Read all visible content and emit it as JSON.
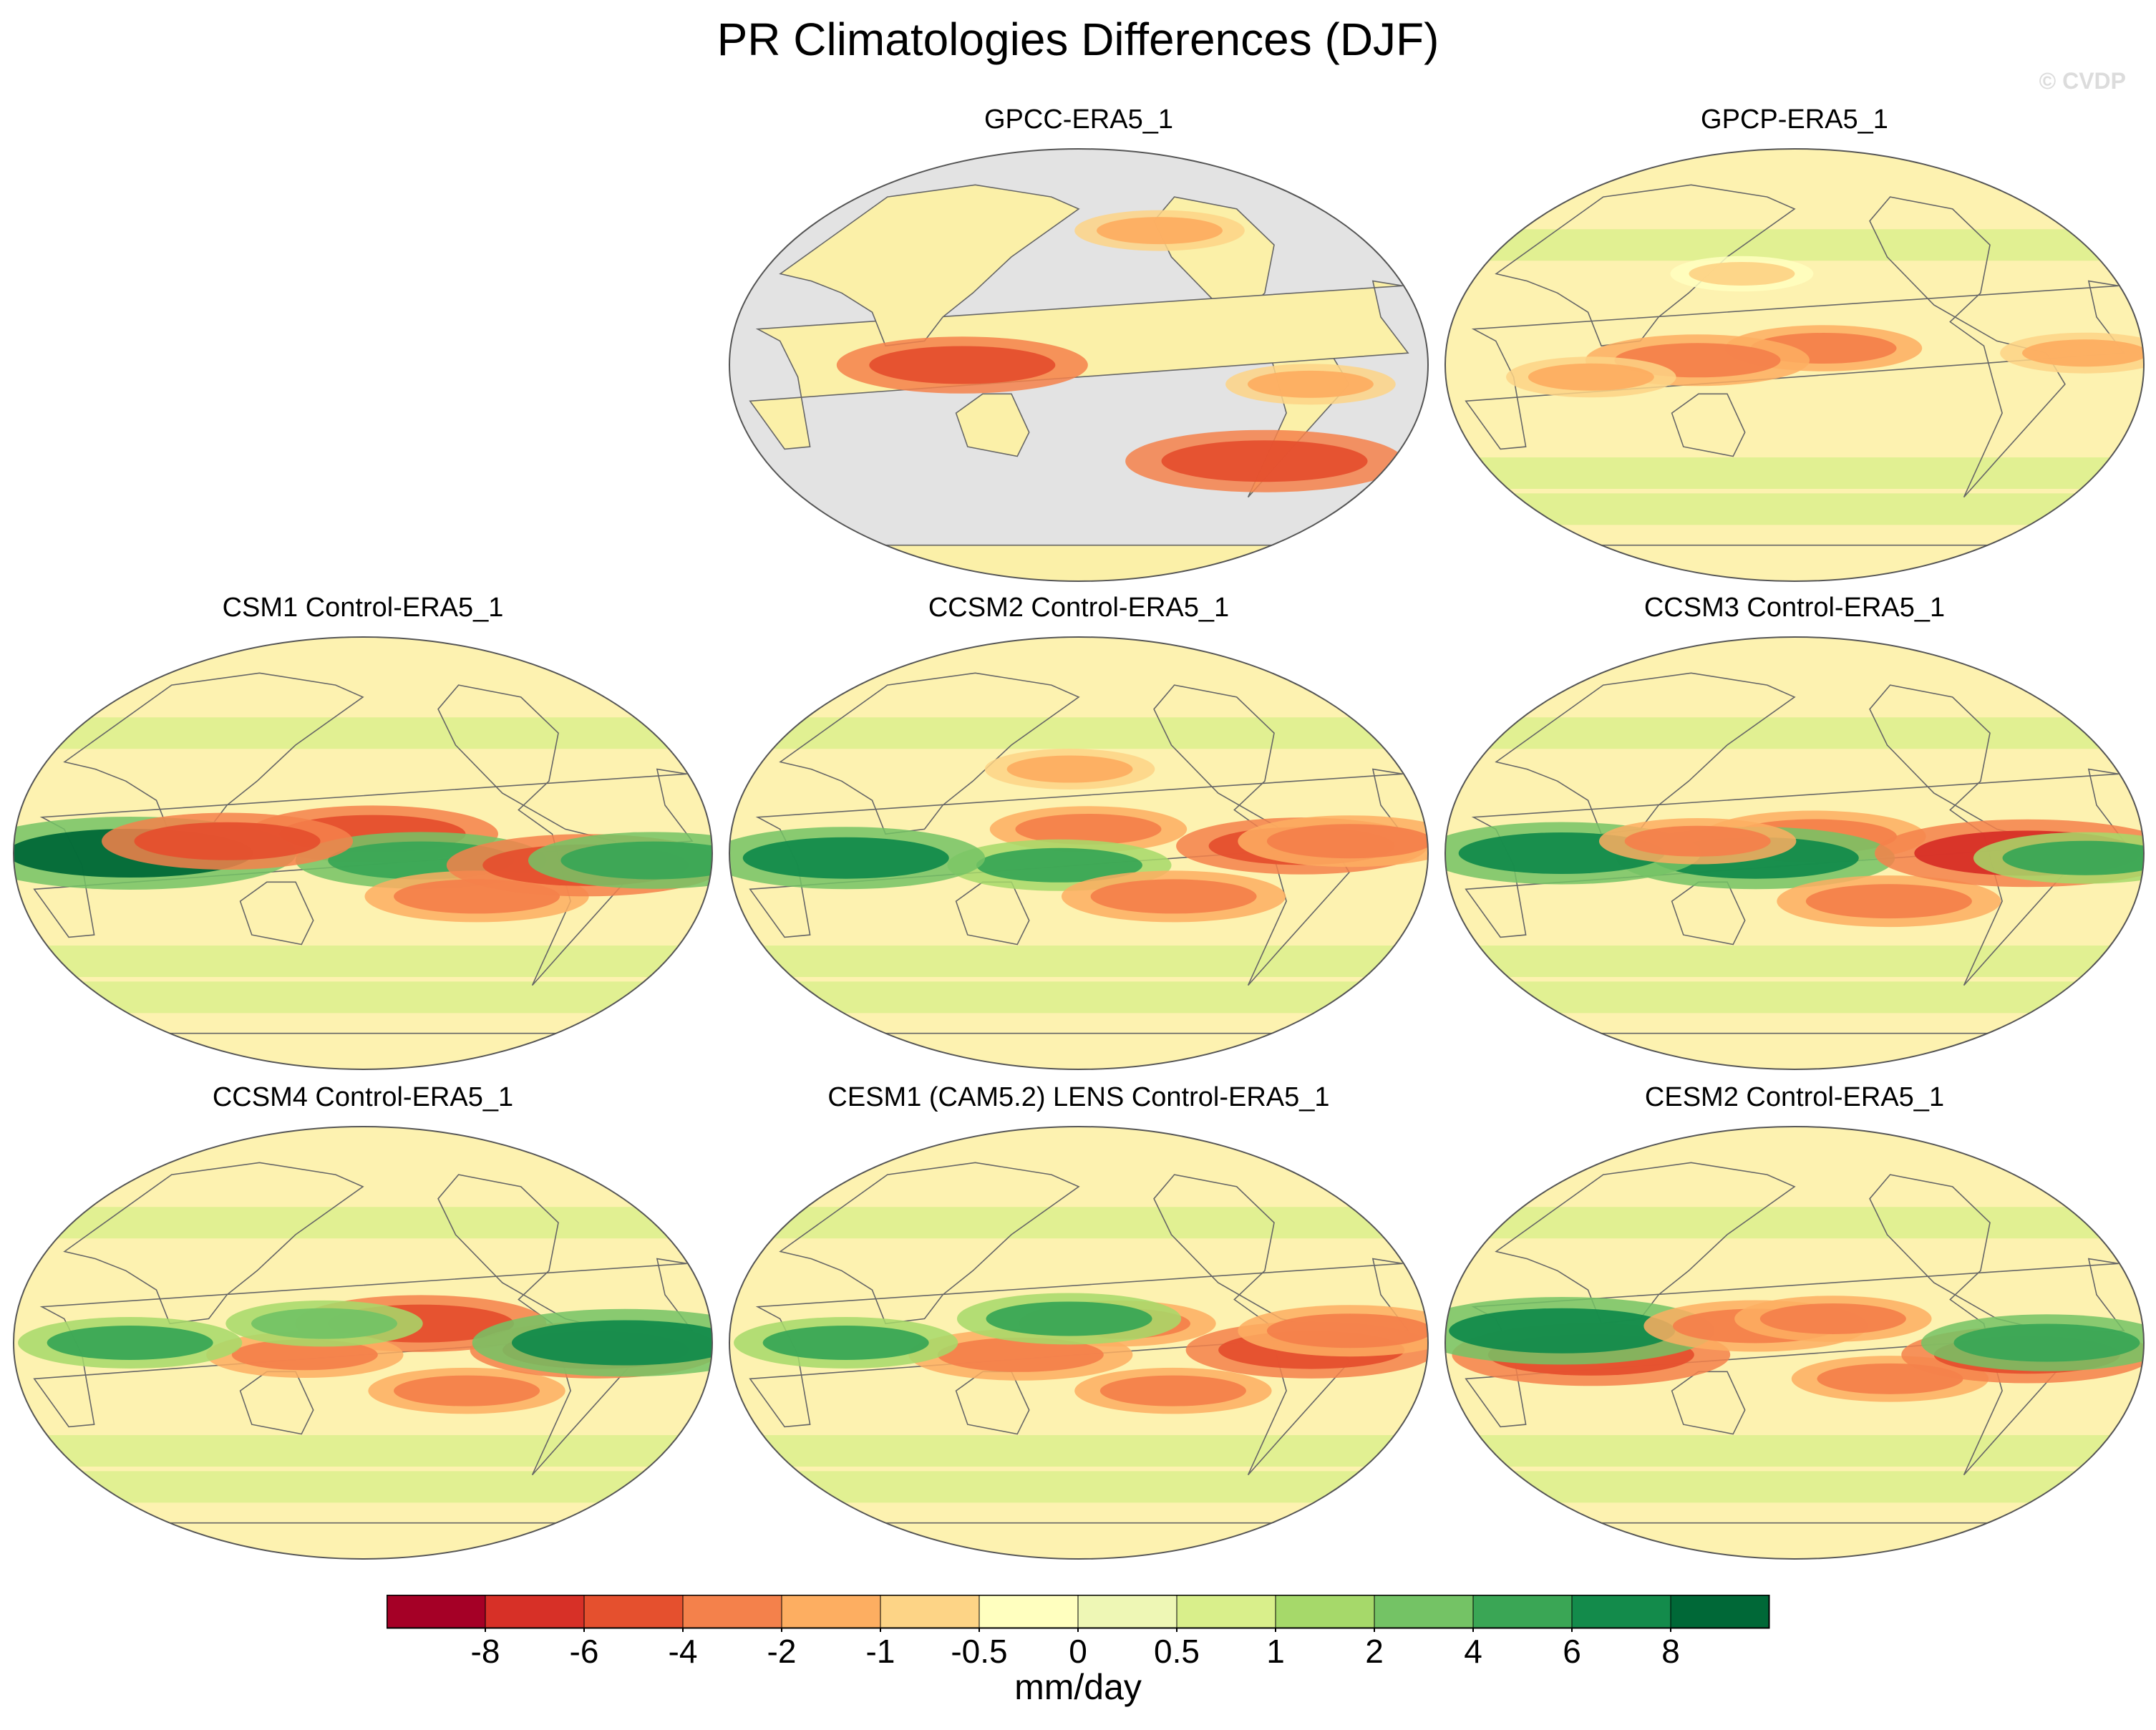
{
  "header": {
    "title": "PR Climatologies Differences (DJF)",
    "watermark": "© CVDP"
  },
  "chart_data": {
    "type": "heatmap",
    "title": "PR Climatologies Differences (DJF)",
    "projection": "Robinson (Pacific-centered), global",
    "field": "precipitation difference vs ERA5_1",
    "units": "mm/day",
    "colorbar": {
      "levels": [
        -8,
        -6,
        -4,
        -2,
        -1,
        -0.5,
        0,
        0.5,
        1,
        2,
        4,
        6,
        8
      ],
      "tick_labels": [
        "-8",
        "-6",
        "-4",
        "-2",
        "-1",
        "-0.5",
        "0",
        "0.5",
        "1",
        "2",
        "4",
        "6",
        "8"
      ],
      "colors": [
        "#a50026",
        "#d73027",
        "#e5502e",
        "#f4814b",
        "#fdae61",
        "#fdd486",
        "#ffffbf",
        "#eef7b5",
        "#d9ef8b",
        "#a6d96a",
        "#74c365",
        "#3aa655",
        "#138b4b",
        "#006837"
      ],
      "label": "mm/day"
    },
    "panels": [
      {
        "title": "GPCC-ERA5_1",
        "land_only": true,
        "features": [
          {
            "lon": 120,
            "lat": 0,
            "value": -5
          },
          {
            "lon": 287,
            "lat": -40,
            "value": -6
          },
          {
            "lon": 300,
            "lat": -8,
            "value": -2
          },
          {
            "lon": 232,
            "lat": 56,
            "value": -2
          }
        ]
      },
      {
        "title": "GPCP-ERA5_1",
        "land_only": false,
        "features": [
          {
            "lon": 195,
            "lat": 7,
            "value": -3
          },
          {
            "lon": 130,
            "lat": 2,
            "value": -4
          },
          {
            "lon": 75,
            "lat": -5,
            "value": -2
          },
          {
            "lon": 330,
            "lat": 5,
            "value": -2
          },
          {
            "lon": 150,
            "lat": 38,
            "value": -1
          }
        ]
      },
      {
        "title": "CSM1 Control-ERA5_1",
        "land_only": false,
        "features": [
          {
            "lon": 185,
            "lat": 8,
            "value": -5
          },
          {
            "lon": 210,
            "lat": -3,
            "value": 5
          },
          {
            "lon": 60,
            "lat": 0,
            "value": 8
          },
          {
            "lon": 110,
            "lat": 5,
            "value": -5
          },
          {
            "lon": 240,
            "lat": -18,
            "value": -4
          },
          {
            "lon": 295,
            "lat": -5,
            "value": -6
          },
          {
            "lon": 330,
            "lat": -3,
            "value": 5
          }
        ]
      },
      {
        "title": "CCSM2 Control-ERA5_1",
        "land_only": false,
        "features": [
          {
            "lon": 185,
            "lat": 10,
            "value": -3
          },
          {
            "lon": 170,
            "lat": -5,
            "value": 4
          },
          {
            "lon": 60,
            "lat": -2,
            "value": 6
          },
          {
            "lon": 230,
            "lat": -18,
            "value": -4
          },
          {
            "lon": 295,
            "lat": 3,
            "value": -5
          },
          {
            "lon": 320,
            "lat": 5,
            "value": -4
          },
          {
            "lon": 175,
            "lat": 35,
            "value": -2
          }
        ]
      },
      {
        "title": "CCSM3 Control-ERA5_1",
        "land_only": false,
        "features": [
          {
            "lon": 190,
            "lat": 7,
            "value": -4
          },
          {
            "lon": 160,
            "lat": -2,
            "value": 6
          },
          {
            "lon": 60,
            "lat": 0,
            "value": 6
          },
          {
            "lon": 230,
            "lat": -20,
            "value": -4
          },
          {
            "lon": 300,
            "lat": 0,
            "value": -7
          },
          {
            "lon": 330,
            "lat": -2,
            "value": 4
          },
          {
            "lon": 130,
            "lat": 5,
            "value": -3
          }
        ]
      },
      {
        "title": "CCSM4 Control-ERA5_1",
        "land_only": false,
        "features": [
          {
            "lon": 210,
            "lat": 8,
            "value": -5
          },
          {
            "lon": 150,
            "lat": -5,
            "value": -3
          },
          {
            "lon": 60,
            "lat": 0,
            "value": 4
          },
          {
            "lon": 235,
            "lat": -20,
            "value": -3
          },
          {
            "lon": 300,
            "lat": -3,
            "value": -5
          },
          {
            "lon": 315,
            "lat": 0,
            "value": 7
          },
          {
            "lon": 160,
            "lat": 8,
            "value": 3
          }
        ]
      },
      {
        "title": "CESM1 (CAM5.2) LENS Control-ERA5_1",
        "land_only": false,
        "features": [
          {
            "lon": 200,
            "lat": 8,
            "value": -3
          },
          {
            "lon": 150,
            "lat": -5,
            "value": -4
          },
          {
            "lon": 60,
            "lat": 0,
            "value": 4
          },
          {
            "lon": 230,
            "lat": -20,
            "value": -3
          },
          {
            "lon": 300,
            "lat": -3,
            "value": -5
          },
          {
            "lon": 175,
            "lat": 10,
            "value": 4
          },
          {
            "lon": 320,
            "lat": 5,
            "value": -4
          }
        ]
      },
      {
        "title": "CESM2 Control-ERA5_1",
        "land_only": false,
        "features": [
          {
            "lon": 75,
            "lat": -5,
            "value": -6
          },
          {
            "lon": 60,
            "lat": 5,
            "value": 7
          },
          {
            "lon": 160,
            "lat": 7,
            "value": -4
          },
          {
            "lon": 230,
            "lat": -15,
            "value": -3
          },
          {
            "lon": 300,
            "lat": -5,
            "value": -5
          },
          {
            "lon": 310,
            "lat": 0,
            "value": 5
          },
          {
            "lon": 200,
            "lat": 10,
            "value": -3
          }
        ]
      }
    ]
  }
}
